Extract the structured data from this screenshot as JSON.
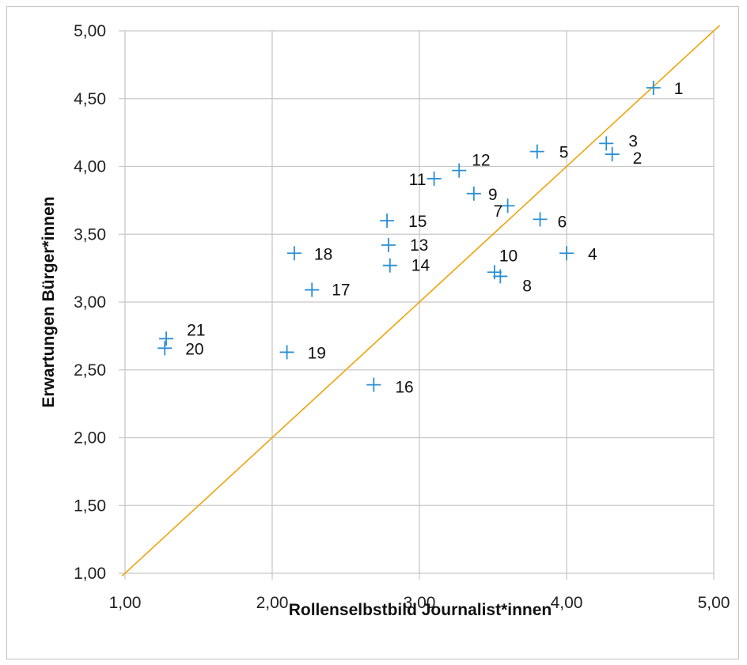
{
  "chart_data": {
    "type": "scatter",
    "title": "",
    "xlabel": "Rollenselbstbild Journalist*innen",
    "ylabel": "Erwartungen Bürger*innen",
    "xlim": [
      1.0,
      5.0
    ],
    "ylim": [
      1.0,
      5.0
    ],
    "x_ticks": [
      "1,00",
      "2,00",
      "3,00",
      "4,00",
      "5,00"
    ],
    "y_ticks": [
      "1,00",
      "1,50",
      "2,00",
      "2,50",
      "3,00",
      "3,50",
      "4,00",
      "4,50",
      "5,00"
    ],
    "grid": true,
    "marker": "plus",
    "colors": {
      "points": "#2a8fd4",
      "reference_line": "#f0a30a",
      "grid": "#c8c8c8"
    },
    "reference_line": {
      "from": [
        0.98,
        0.98
      ],
      "to": [
        5.04,
        5.04
      ]
    },
    "points": [
      {
        "label": "1",
        "x": 4.59,
        "y": 4.58
      },
      {
        "label": "2",
        "x": 4.31,
        "y": 4.09
      },
      {
        "label": "3",
        "x": 4.27,
        "y": 4.17
      },
      {
        "label": "4",
        "x": 4.0,
        "y": 3.36
      },
      {
        "label": "5",
        "x": 3.8,
        "y": 4.11
      },
      {
        "label": "6",
        "x": 3.82,
        "y": 3.61
      },
      {
        "label": "7",
        "x": 3.6,
        "y": 3.71
      },
      {
        "label": "8",
        "x": 3.55,
        "y": 3.19
      },
      {
        "label": "9",
        "x": 3.37,
        "y": 3.8
      },
      {
        "label": "10",
        "x": 3.51,
        "y": 3.22
      },
      {
        "label": "11",
        "x": 3.1,
        "y": 3.91
      },
      {
        "label": "12",
        "x": 3.27,
        "y": 3.97
      },
      {
        "label": "13",
        "x": 2.79,
        "y": 3.42
      },
      {
        "label": "14",
        "x": 2.8,
        "y": 3.27
      },
      {
        "label": "15",
        "x": 2.78,
        "y": 3.6
      },
      {
        "label": "16",
        "x": 2.69,
        "y": 2.39
      },
      {
        "label": "17",
        "x": 2.27,
        "y": 3.09
      },
      {
        "label": "18",
        "x": 2.15,
        "y": 3.36
      },
      {
        "label": "19",
        "x": 2.1,
        "y": 2.63
      },
      {
        "label": "20",
        "x": 1.27,
        "y": 2.66
      },
      {
        "label": "21",
        "x": 1.28,
        "y": 2.73
      }
    ]
  }
}
